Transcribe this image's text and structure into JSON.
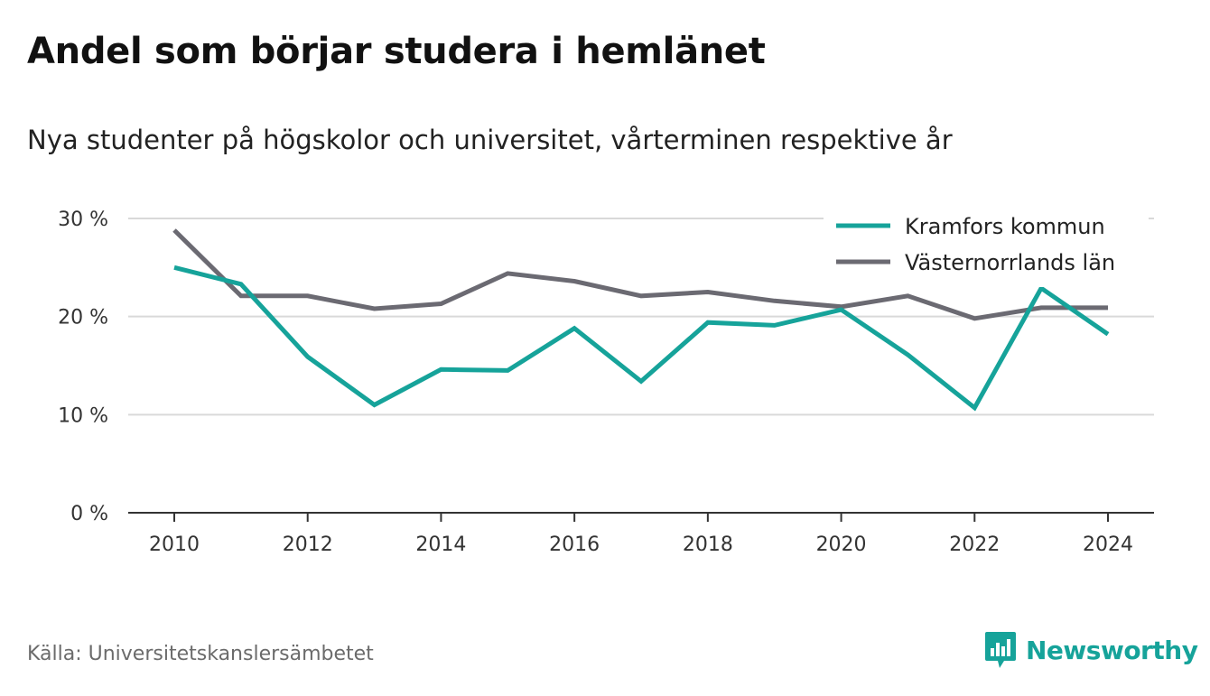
{
  "header": {
    "title": "Andel som börjar studera i hemlänet",
    "subtitle": "Nya studenter på högskolor och universitet, vårterminen respektive år"
  },
  "footer": {
    "source": "Källa: Universitetskanslersämbetet",
    "brand": "Newsworthy"
  },
  "colors": {
    "kramfors": "#16a39a",
    "vasternorrland": "#6b6a72",
    "grid": "#d9d9d9",
    "axis": "#333333",
    "brand": "#16a39a"
  },
  "chart_data": {
    "type": "line",
    "x": [
      2010,
      2011,
      2012,
      2013,
      2014,
      2015,
      2016,
      2017,
      2018,
      2019,
      2020,
      2021,
      2022,
      2023,
      2024
    ],
    "x_ticks": [
      2010,
      2012,
      2014,
      2016,
      2018,
      2020,
      2022,
      2024
    ],
    "x_tick_labels": [
      "2010",
      "2012",
      "2014",
      "2016",
      "2018",
      "2020",
      "2022",
      "2024"
    ],
    "y_ticks": [
      0,
      10,
      20,
      30
    ],
    "y_tick_labels": [
      "0 %",
      "10 %",
      "20 %",
      "30 %"
    ],
    "ylim": [
      0,
      30
    ],
    "grid": true,
    "legend_position": "top-right",
    "series": [
      {
        "name": "Kramfors kommun",
        "color": "#16a39a",
        "values": [
          25.0,
          23.3,
          15.9,
          11.0,
          14.6,
          14.5,
          18.8,
          13.4,
          19.4,
          19.1,
          20.7,
          16.1,
          10.7,
          22.9,
          18.2
        ]
      },
      {
        "name": "Västernorrlands län",
        "color": "#6b6a72",
        "values": [
          28.8,
          22.1,
          22.1,
          20.8,
          21.3,
          24.4,
          23.6,
          22.1,
          22.5,
          21.6,
          21.0,
          22.1,
          19.8,
          20.9,
          20.9
        ]
      }
    ]
  }
}
